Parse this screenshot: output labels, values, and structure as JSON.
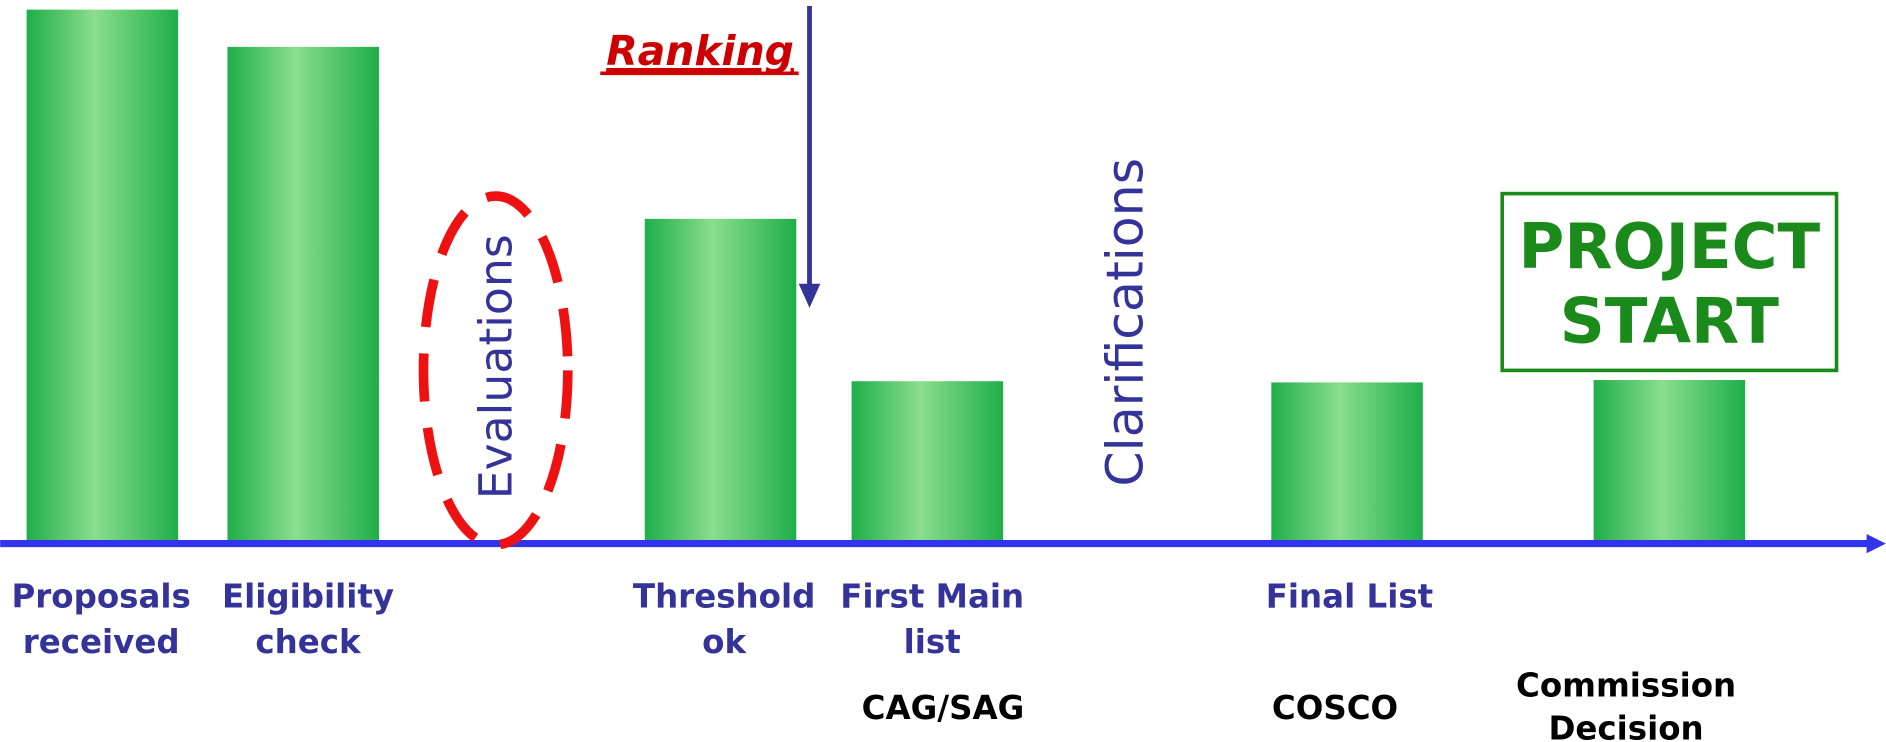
{
  "stages": [
    {
      "label": [
        "Proposals",
        "received"
      ]
    },
    {
      "label": [
        "Eligibility",
        "check"
      ]
    },
    {
      "label": [
        "Threshold",
        "ok"
      ]
    },
    {
      "label": [
        "First Main",
        "list"
      ],
      "body": "CAG/SAG"
    },
    {
      "label": [
        "Final List"
      ],
      "body": "COSCO"
    },
    {
      "body": [
        "Commission",
        "Decision"
      ]
    }
  ],
  "annotations": {
    "ranking": "Ranking",
    "evaluations": "Evaluations",
    "clarifications": "Clarifications",
    "milestone": [
      "PROJECT",
      "START"
    ]
  }
}
